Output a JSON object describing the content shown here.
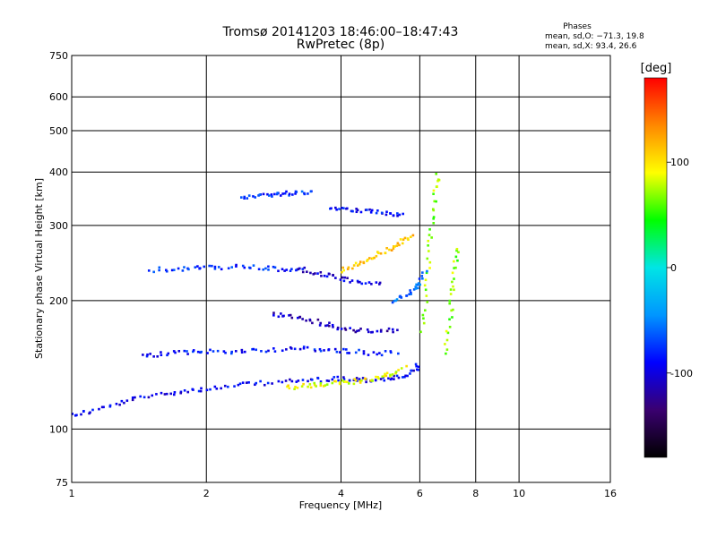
{
  "chart_data": {
    "type": "scatter",
    "title": "Tromsø 20141203 18:46:00–18:47:43",
    "subtitle": "RwPretec (8p)",
    "xlabel": "Frequency [MHz]",
    "ylabel": "Stationary phase Virtual Height [km]",
    "x_scale": "log",
    "y_scale": "log",
    "xlim": [
      1,
      16
    ],
    "ylim": [
      75,
      750
    ],
    "x_ticks": [
      1,
      2,
      4,
      6,
      8,
      10,
      16
    ],
    "y_ticks": [
      75,
      100,
      200,
      300,
      400,
      500,
      600,
      750
    ],
    "grid": true,
    "stats_heading": "Phases",
    "stats": [
      "mean, sd,O: −71.3, 19.8",
      "mean, sd,X:  93.4, 26.6"
    ],
    "colorbar": {
      "label": "[deg]",
      "range": [
        -180,
        180
      ],
      "ticks": [
        100,
        0,
        -100
      ],
      "colors": [
        "#000000",
        "#3a0070",
        "#0000ff",
        "#0096ff",
        "#00e5e5",
        "#00ff00",
        "#ffff00",
        "#ff8800",
        "#ff0000"
      ]
    },
    "traces": [
      {
        "x": [
          1.0,
          1.1,
          1.25,
          1.4,
          1.6,
          1.8,
          2.0,
          2.3,
          2.6,
          3.0,
          3.4,
          3.8,
          4.2,
          4.6,
          5.0,
          5.4,
          5.8,
          6.0
        ],
        "y": [
          108,
          110,
          114,
          118,
          121,
          123,
          124,
          126,
          128,
          129,
          130,
          131,
          131,
          130,
          131,
          132,
          136,
          142
        ],
        "phase": -95
      },
      {
        "x": [
          1.45,
          1.6,
          1.8,
          2.0,
          2.3,
          2.6,
          3.0,
          3.4,
          3.8,
          4.2,
          4.8,
          5.4
        ],
        "y": [
          148,
          150,
          151,
          152,
          152,
          153,
          154,
          154,
          153,
          152,
          150,
          152
        ],
        "phase": -85
      },
      {
        "x": [
          1.5,
          1.7,
          1.9,
          2.1,
          2.4,
          2.7,
          3.0,
          3.3
        ],
        "y": [
          236,
          237,
          238,
          239,
          240,
          238,
          236,
          235
        ],
        "phase": -80
      },
      {
        "x": [
          3.2,
          3.5,
          3.8,
          4.1,
          4.5,
          5.0
        ],
        "y": [
          238,
          232,
          228,
          224,
          220,
          218
        ],
        "phase": -100
      },
      {
        "x": [
          2.8,
          3.1,
          3.4,
          3.7,
          4.0,
          4.4,
          4.9,
          5.4
        ],
        "y": [
          186,
          184,
          180,
          176,
          172,
          170,
          169,
          171
        ],
        "phase": -110
      },
      {
        "x": [
          2.4,
          2.6,
          2.8,
          3.0,
          3.2,
          3.5
        ],
        "y": [
          350,
          352,
          354,
          356,
          358,
          360
        ],
        "phase": -75
      },
      {
        "x": [
          3.8,
          4.1,
          4.4,
          4.8,
          5.2,
          5.5
        ],
        "y": [
          330,
          328,
          326,
          322,
          318,
          315
        ],
        "phase": -90
      },
      {
        "x": [
          3.0,
          3.3,
          3.6,
          3.9,
          4.2,
          4.5,
          4.9,
          5.2,
          5.6
        ],
        "y": [
          125,
          126,
          127,
          128,
          129,
          130,
          132,
          135,
          140
        ],
        "phase": 90
      },
      {
        "x": [
          4.0,
          4.3,
          4.6,
          4.9,
          5.2,
          5.5,
          5.8
        ],
        "y": [
          235,
          242,
          250,
          258,
          266,
          275,
          285
        ],
        "phase": 110
      },
      {
        "x": [
          6.1,
          6.2,
          6.3,
          6.4,
          6.5,
          6.6
        ],
        "y": [
          170,
          210,
          260,
          310,
          360,
          400
        ],
        "phase": 70
      },
      {
        "x": [
          6.8,
          7.0,
          7.1,
          7.2,
          7.3
        ],
        "y": [
          150,
          180,
          210,
          240,
          270
        ],
        "phase": 70
      },
      {
        "x": [
          5.2,
          5.5,
          5.8,
          6.0,
          6.2
        ],
        "y": [
          200,
          205,
          210,
          220,
          235
        ],
        "phase": -60
      }
    ]
  }
}
